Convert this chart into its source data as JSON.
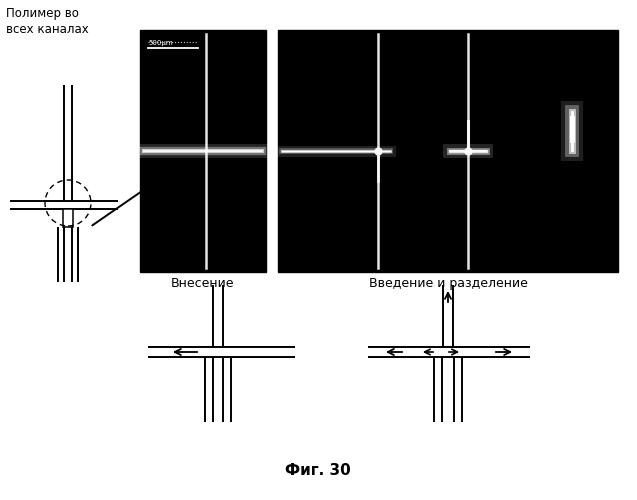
{
  "title": "Фиг. 30",
  "label_top_left": "Полимер во\nвсех каналах",
  "label_injection": "Внесение",
  "label_separation": "Введение и разделение",
  "scale_bar_text": "500μm",
  "bg_color": "#ffffff",
  "black_color": "#000000"
}
